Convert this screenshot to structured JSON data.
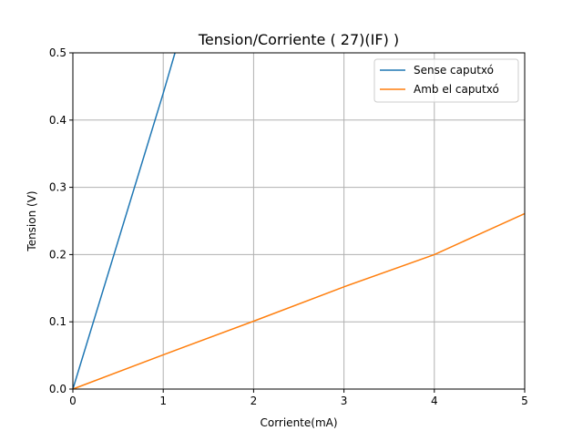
{
  "chart_data": {
    "type": "line",
    "title": "Tension/Corriente ( 27)(IF) )",
    "xlabel": "Corriente(mA)",
    "ylabel": "Tension (V)",
    "xlim": [
      0,
      5
    ],
    "ylim": [
      0,
      0.5
    ],
    "xticks": [
      0,
      1,
      2,
      3,
      4,
      5
    ],
    "yticks": [
      0.0,
      0.1,
      0.2,
      0.3,
      0.4,
      0.5
    ],
    "xtick_labels": [
      "0",
      "1",
      "2",
      "3",
      "4",
      "5"
    ],
    "ytick_labels": [
      "0.0",
      "0.1",
      "0.2",
      "0.3",
      "0.4",
      "0.5"
    ],
    "grid": true,
    "legend_position": "upper-right",
    "series": [
      {
        "name": "Sense caputxó",
        "color": "#1f77b4",
        "x": [
          0,
          1.0,
          1.13
        ],
        "y": [
          0,
          0.44,
          0.5
        ]
      },
      {
        "name": "Amb el caputxó",
        "color": "#ff7f0e",
        "x": [
          0,
          1,
          2,
          3,
          4,
          5
        ],
        "y": [
          0,
          0.051,
          0.101,
          0.152,
          0.2,
          0.261
        ]
      }
    ]
  }
}
